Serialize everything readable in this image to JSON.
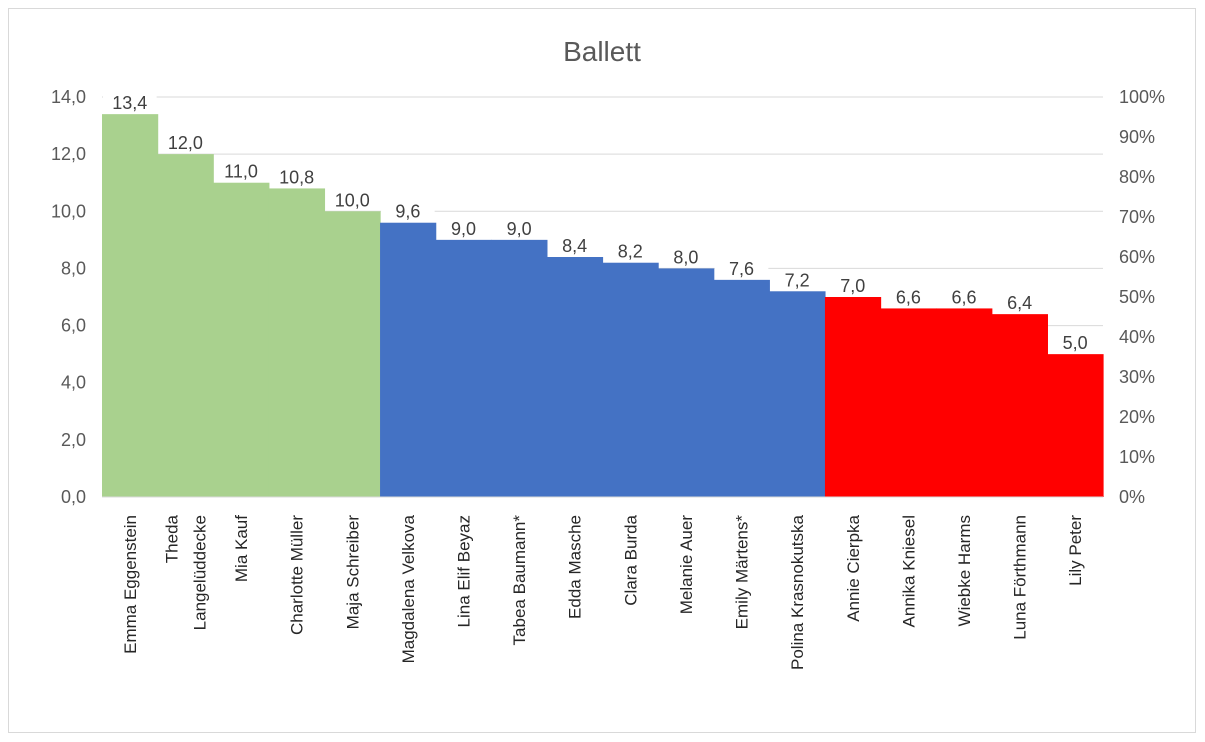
{
  "chart_data": {
    "type": "bar",
    "title": "Ballett",
    "xlabel": "",
    "ylabel": "",
    "ylim": [
      0,
      14
    ],
    "y_ticks": [
      "0,0",
      "2,0",
      "4,0",
      "6,0",
      "8,0",
      "10,0",
      "12,0",
      "14,0"
    ],
    "y2_ticks": [
      "0%",
      "10%",
      "20%",
      "30%",
      "40%",
      "50%",
      "60%",
      "70%",
      "80%",
      "90%",
      "100%"
    ],
    "grid": true,
    "legend": "none",
    "gap_between_bars": 0,
    "categories": [
      [
        "Emma Eggenstein"
      ],
      [
        "Theda",
        "Langelüddecke"
      ],
      [
        "Mia Kauf"
      ],
      [
        "Charlotte Müller"
      ],
      [
        "Maja Schreiber"
      ],
      [
        "Magdalena Velkova"
      ],
      [
        "Lina Elif Beyaz"
      ],
      [
        "Tabea Baumann*"
      ],
      [
        "Edda Masche"
      ],
      [
        "Clara Burda"
      ],
      [
        "Melanie Auer"
      ],
      [
        "Emily Märtens*"
      ],
      [
        "Polina Krasnokutska"
      ],
      [
        "Annie Cierpka"
      ],
      [
        "Annika Kniesel"
      ],
      [
        "Wiebke Harms"
      ],
      [
        "Luna Förthmann"
      ],
      [
        "Lily Peter"
      ]
    ],
    "values": [
      13.4,
      12.0,
      11.0,
      10.8,
      10.0,
      9.6,
      9.0,
      9.0,
      8.4,
      8.2,
      8.0,
      7.6,
      7.2,
      7.0,
      6.6,
      6.6,
      6.4,
      5.0
    ],
    "value_labels": [
      "13,4",
      "12,0",
      "11,0",
      "10,8",
      "10,0",
      "9,6",
      "9,0",
      "9,0",
      "8,4",
      "8,2",
      "8,0",
      "7,6",
      "7,2",
      "7,0",
      "6,6",
      "6,6",
      "6,4",
      "5,0"
    ],
    "colors": [
      "#a9d18e",
      "#a9d18e",
      "#a9d18e",
      "#a9d18e",
      "#a9d18e",
      "#4472c4",
      "#4472c4",
      "#4472c4",
      "#4472c4",
      "#4472c4",
      "#4472c4",
      "#4472c4",
      "#4472c4",
      "#ff0000",
      "#ff0000",
      "#ff0000",
      "#ff0000",
      "#ff0000"
    ]
  }
}
